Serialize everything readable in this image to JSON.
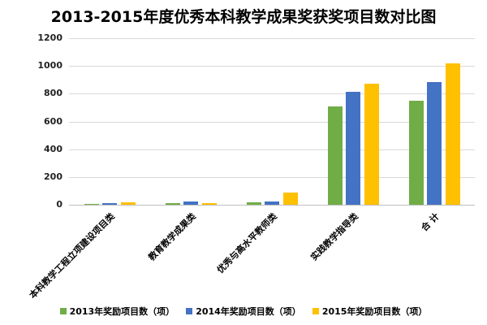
{
  "chart_data": {
    "type": "bar",
    "title": "2013-2015年度优秀本科教学成果奖获奖项目数对比图",
    "xlabel": "",
    "ylabel": "",
    "ylim": [
      0,
      1200
    ],
    "yticks": [
      0,
      200,
      400,
      600,
      800,
      1000,
      1200
    ],
    "grid": true,
    "legend_position": "bottom",
    "categories": [
      "本科教学工程立项建设项目类",
      "教育教学成果类",
      "优秀与高水平教师类",
      "实践教学指导类",
      "合 计"
    ],
    "series": [
      {
        "name": "2013年奖励项目数（项）",
        "color": "#70AD47",
        "values": [
          5,
          12,
          16,
          707,
          748
        ]
      },
      {
        "name": "2014年奖励项目数（项）",
        "color": "#4472C4",
        "values": [
          10,
          22,
          22,
          813,
          883
        ]
      },
      {
        "name": "2015年奖励项目数（项）",
        "color": "#FFC000",
        "values": [
          18,
          12,
          88,
          871,
          1018
        ]
      }
    ]
  },
  "yticks_labels": [
    "1200",
    "1000",
    "800",
    "600",
    "400",
    "200",
    "0"
  ]
}
